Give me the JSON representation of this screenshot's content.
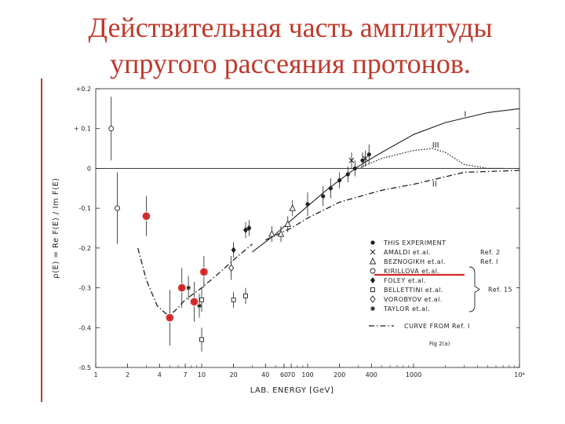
{
  "slide": {
    "title_line1": "Действительная часть амплитуды",
    "title_line2": "упругого рассеяния протонов."
  },
  "colors": {
    "title": "#c0392b",
    "highlight_marker": "#d62828",
    "ink": "#1f1f1f"
  },
  "chart_data": {
    "type": "scatter",
    "title": "",
    "xlabel": "LAB. ENERGY [GeV]",
    "ylabel": "ρ(E) = Re F(E) / Im F(E)",
    "xscale": "log",
    "xlim": [
      1,
      10000
    ],
    "ylim": [
      -0.5,
      0.2
    ],
    "x_ticks": [
      {
        "v": 1,
        "label": "1"
      },
      {
        "v": 2,
        "label": "2"
      },
      {
        "v": 4,
        "label": "4"
      },
      {
        "v": 7,
        "label": "7"
      },
      {
        "v": 10,
        "label": "10"
      },
      {
        "v": 20,
        "label": "20"
      },
      {
        "v": 40,
        "label": "40"
      },
      {
        "v": 60,
        "label": "60"
      },
      {
        "v": 70,
        "label": "70"
      },
      {
        "v": 100,
        "label": "100"
      },
      {
        "v": 200,
        "label": "200"
      },
      {
        "v": 400,
        "label": "400"
      },
      {
        "v": 1000,
        "label": "1000"
      },
      {
        "v": 10000,
        "label": "10⁴"
      }
    ],
    "y_ticks": [
      {
        "v": 0.2,
        "label": "+0.2"
      },
      {
        "v": 0.1,
        "label": "+ 0.1"
      },
      {
        "v": 0,
        "label": "0"
      },
      {
        "v": -0.1,
        "label": "-0.1"
      },
      {
        "v": -0.2,
        "label": "-0.2"
      },
      {
        "v": -0.3,
        "label": "-0.3"
      },
      {
        "v": -0.4,
        "label": "-0.4"
      },
      {
        "v": -0.5,
        "label": "-0.5"
      }
    ],
    "series": [
      {
        "name": "THIS EXPERIMENT",
        "marker": "dot",
        "points": [
          {
            "x": 100,
            "y": -0.09,
            "err": 0.03
          },
          {
            "x": 140,
            "y": -0.07,
            "err": 0.025
          },
          {
            "x": 165,
            "y": -0.05,
            "err": 0.025
          },
          {
            "x": 200,
            "y": -0.03,
            "err": 0.02
          },
          {
            "x": 240,
            "y": -0.015,
            "err": 0.02
          },
          {
            "x": 280,
            "y": 0.0,
            "err": 0.02
          },
          {
            "x": 330,
            "y": 0.02,
            "err": 0.02
          },
          {
            "x": 380,
            "y": 0.035,
            "err": 0.025
          }
        ]
      },
      {
        "name": "AMALDI et.al.",
        "marker": "cross",
        "points": [
          {
            "x": 260,
            "y": 0.02,
            "err": 0.02
          },
          {
            "x": 350,
            "y": 0.025,
            "err": 0.02
          }
        ]
      },
      {
        "name": "BEZNOGIKH et.al.",
        "marker": "triangle",
        "points": [
          {
            "x": 46,
            "y": -0.165,
            "err": 0.02
          },
          {
            "x": 56,
            "y": -0.165,
            "err": 0.02
          },
          {
            "x": 65,
            "y": -0.14,
            "err": 0.02
          },
          {
            "x": 72,
            "y": -0.1,
            "err": 0.02
          }
        ]
      },
      {
        "name": "KIRILLOVA et.al.",
        "marker": "circle-open",
        "points": [
          {
            "x": 1.4,
            "y": 0.1,
            "err": 0.08
          },
          {
            "x": 1.6,
            "y": -0.1,
            "err": 0.09
          }
        ]
      },
      {
        "name": "FOLEY et.al.",
        "marker": "diamond-filled",
        "points": [
          {
            "x": 3,
            "y": -0.12,
            "err": 0.05
          },
          {
            "x": 5,
            "y": -0.375,
            "err": 0.07
          },
          {
            "x": 6.5,
            "y": -0.3,
            "err": 0.05
          },
          {
            "x": 8.5,
            "y": -0.335,
            "err": 0.05
          },
          {
            "x": 10.5,
            "y": -0.26,
            "err": 0.04
          },
          {
            "x": 20,
            "y": -0.205,
            "err": 0.02
          },
          {
            "x": 26,
            "y": -0.155,
            "err": 0.02
          },
          {
            "x": 28,
            "y": -0.15,
            "err": 0.02
          }
        ]
      },
      {
        "name": "BELLETTINI et.al.",
        "marker": "square",
        "points": [
          {
            "x": 10,
            "y": -0.33,
            "err": 0.03
          },
          {
            "x": 10,
            "y": -0.43,
            "err": 0.03
          },
          {
            "x": 20,
            "y": -0.33,
            "err": 0.02
          },
          {
            "x": 26,
            "y": -0.32,
            "err": 0.02
          }
        ]
      },
      {
        "name": "VOROBYOV et.al.",
        "marker": "diamond-open",
        "points": [
          {
            "x": 19,
            "y": -0.25,
            "err": 0.03
          }
        ]
      },
      {
        "name": "TAYLOR et.al.",
        "marker": "star",
        "points": [
          {
            "x": 7.5,
            "y": -0.3,
            "err": 0.03
          },
          {
            "x": 9.5,
            "y": -0.345,
            "err": 0.03
          }
        ]
      }
    ],
    "highlighted_points": [
      {
        "x": 3,
        "y": -0.12
      },
      {
        "x": 5,
        "y": -0.375
      },
      {
        "x": 6.5,
        "y": -0.3
      },
      {
        "x": 8.5,
        "y": -0.335
      },
      {
        "x": 10.5,
        "y": -0.26
      }
    ],
    "curves": [
      {
        "name": "I",
        "style": "solid",
        "points": [
          [
            30,
            -0.21
          ],
          [
            50,
            -0.165
          ],
          [
            70,
            -0.13
          ],
          [
            100,
            -0.095
          ],
          [
            150,
            -0.055
          ],
          [
            200,
            -0.03
          ],
          [
            300,
            0.005
          ],
          [
            500,
            0.04
          ],
          [
            1000,
            0.085
          ],
          [
            2000,
            0.115
          ],
          [
            5000,
            0.14
          ],
          [
            10000,
            0.15
          ]
        ]
      },
      {
        "name": "III",
        "style": "dotted",
        "points": [
          [
            300,
            0.0
          ],
          [
            500,
            0.025
          ],
          [
            1000,
            0.045
          ],
          [
            1500,
            0.05
          ],
          [
            2000,
            0.04
          ],
          [
            3000,
            0.01
          ],
          [
            5000,
            0.0
          ],
          [
            7000,
            0.0
          ]
        ]
      },
      {
        "name": "II",
        "style": "dash-dot",
        "points": [
          [
            40,
            -0.18
          ],
          [
            70,
            -0.15
          ],
          [
            100,
            -0.125
          ],
          [
            200,
            -0.085
          ],
          [
            500,
            -0.055
          ],
          [
            1000,
            -0.04
          ],
          [
            3000,
            -0.01
          ],
          [
            10000,
            -0.005
          ]
        ]
      },
      {
        "name": "CURVE FROM Ref. I",
        "style": "dash-dot",
        "points": [
          [
            2.5,
            -0.2
          ],
          [
            3,
            -0.28
          ],
          [
            3.8,
            -0.345
          ],
          [
            4.6,
            -0.365
          ],
          [
            5.5,
            -0.36
          ],
          [
            7,
            -0.33
          ],
          [
            10,
            -0.3
          ],
          [
            15,
            -0.26
          ],
          [
            20,
            -0.23
          ],
          [
            30,
            -0.19
          ]
        ]
      }
    ],
    "curve_labels": [
      {
        "text": "I",
        "x": 3000,
        "y": 0.13
      },
      {
        "text": "III",
        "x": 1500,
        "y": 0.052
      },
      {
        "text": "II",
        "x": 1500,
        "y": -0.045
      }
    ],
    "legend": {
      "placement": "bottom-right",
      "entries": [
        {
          "marker": "dot",
          "label": "THIS EXPERIMENT",
          "ref": ""
        },
        {
          "marker": "cross",
          "label": "AMALDI   et.al.",
          "ref": "Ref. 2"
        },
        {
          "marker": "triangle",
          "label": "BEZNOGIKH et.al.",
          "ref": "Ref. I"
        },
        {
          "marker": "circle-open",
          "label": "KIRILLOVA  et.al.",
          "ref": ""
        },
        {
          "marker": "diamond-filled",
          "label": "FOLEY  et.al.",
          "ref": ""
        },
        {
          "marker": "square",
          "label": "BELLETTINI  et.al.",
          "ref": "Ref. 15"
        },
        {
          "marker": "diamond-open",
          "label": "VOROBYOV et.al.",
          "ref": ""
        },
        {
          "marker": "star",
          "label": "TAYLOR   et.al.",
          "ref": ""
        },
        {
          "marker": "dashdot",
          "label": "CURVE  FROM  Ref. I",
          "ref": ""
        }
      ],
      "underlined_entry": "KIRILLOVA  et.al."
    },
    "note": "Fig 2(a)",
    "grid": false
  }
}
